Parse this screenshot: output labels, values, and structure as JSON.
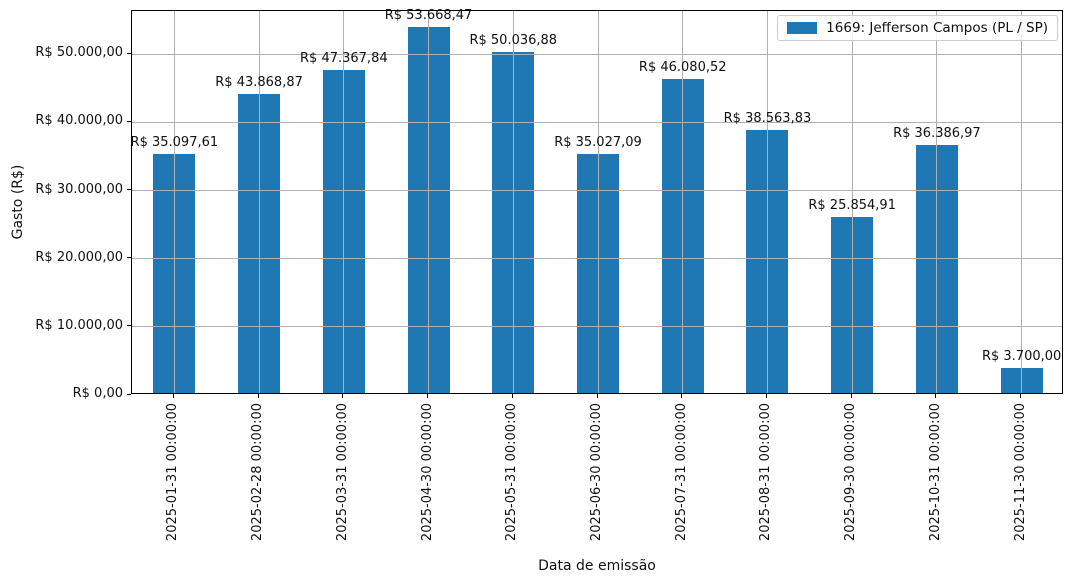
{
  "chart_data": {
    "type": "bar",
    "title": "",
    "xlabel": "Data de emissão",
    "ylabel": "Gasto (R$)",
    "categories": [
      "2025-01-31 00:00:00",
      "2025-02-28 00:00:00",
      "2025-03-31 00:00:00",
      "2025-04-30 00:00:00",
      "2025-05-31 00:00:00",
      "2025-06-30 00:00:00",
      "2025-07-31 00:00:00",
      "2025-08-31 00:00:00",
      "2025-09-30 00:00:00",
      "2025-10-31 00:00:00",
      "2025-11-30 00:00:00"
    ],
    "values": [
      35097.61,
      43868.87,
      47367.84,
      53668.47,
      50036.88,
      35027.09,
      46080.52,
      38563.83,
      25854.91,
      36386.97,
      3700.0
    ],
    "bar_labels": [
      "R$ 35.097,61",
      "R$ 43.868,87",
      "R$ 47.367,84",
      "R$ 53.668,47",
      "R$ 50.036,88",
      "R$ 35.027,09",
      "R$ 46.080,52",
      "R$ 38.563,83",
      "R$ 25.854,91",
      "R$ 36.386,97",
      "R$ 3.700,00"
    ],
    "ytick_values": [
      0,
      10000,
      20000,
      30000,
      40000,
      50000
    ],
    "ytick_labels": [
      "R$ 0,00",
      "R$ 10.000,00",
      "R$ 20.000,00",
      "R$ 30.000,00",
      "R$ 40.000,00",
      "R$ 50.000,00"
    ],
    "ylim": [
      0,
      56352
    ],
    "grid": true,
    "grid_on_top": true,
    "legend": {
      "position": "upper right",
      "entries": [
        {
          "label": "1669: Jefferson Campos (PL / SP)",
          "color": "#1f77b4"
        }
      ]
    },
    "colors": {
      "bar": "#1f77b4",
      "grid": "#b0b0b0",
      "spine": "#000000",
      "text": "#111111"
    }
  }
}
